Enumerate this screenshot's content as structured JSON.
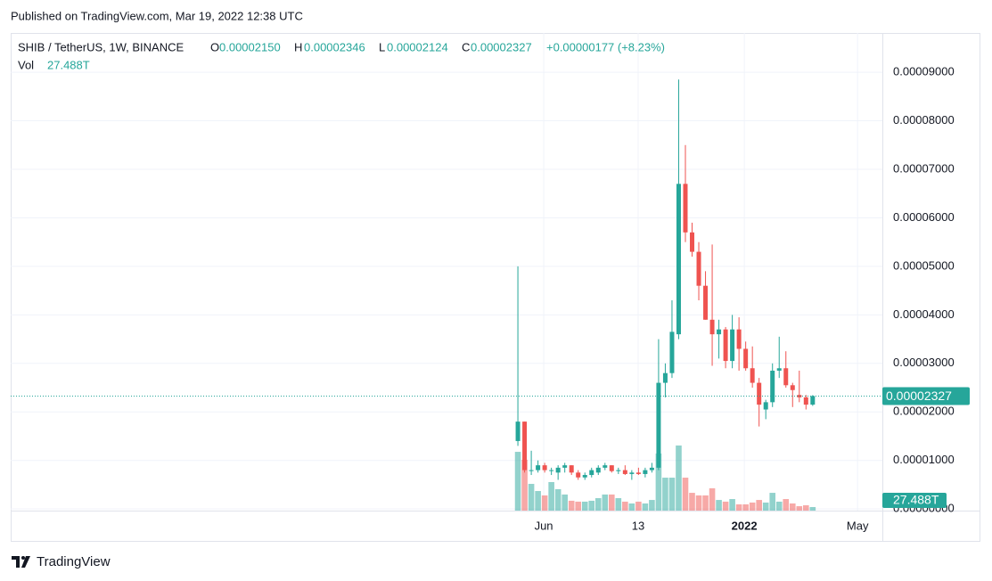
{
  "published": "Published on TradingView.com, Mar 19, 2022 12:38 UTC",
  "brand": "TradingView",
  "chart_data": {
    "type": "candlestick",
    "title": "SHIB / TetherUS, 1W, BINANCE",
    "legend": {
      "o_key": "O",
      "o": "0.00002150",
      "h_key": "H",
      "h": "0.00002346",
      "l_key": "L",
      "l": "0.00002124",
      "c_key": "C",
      "c": "0.00002327",
      "change": "+0.00000177 (+8.23%)",
      "vol_key": "Vol",
      "vol": "27.488T"
    },
    "last_price_label": "0.00002327",
    "last_volume_label": "27.488T",
    "up_color": "#26a69a",
    "down_color": "#ef5350",
    "grid": true,
    "categories": [
      null,
      null,
      null,
      null,
      null,
      null,
      null,
      null,
      null,
      null,
      null,
      null,
      null,
      null,
      null,
      null,
      null,
      null,
      null,
      null,
      null,
      null,
      null,
      null,
      null,
      null,
      null,
      null,
      null,
      null,
      null,
      null,
      null,
      null,
      null,
      null,
      null,
      null,
      null,
      null,
      null,
      null,
      null,
      null,
      null
    ],
    "open": [
      1.4e-05,
      1.8e-05,
      8e-06,
      8e-06,
      9e-06,
      8e-06,
      7.5e-06,
      8.5e-06,
      9e-06,
      7.5e-06,
      6.5e-06,
      7e-06,
      7.5e-06,
      8.5e-06,
      9e-06,
      7.8e-06,
      8e-06,
      7.2e-06,
      7.5e-06,
      7.2e-06,
      8e-06,
      8.5e-06,
      2.6e-05,
      2.8e-05,
      3.6e-05,
      6.7e-05,
      5.7e-05,
      5.3e-05,
      4.6e-05,
      3.9e-05,
      3.6e-05,
      3.7e-05,
      3.05e-05,
      3.7e-05,
      3.3e-05,
      2.9e-05,
      2.6e-05,
      2.05e-05,
      2.2e-05,
      2.85e-05,
      2.9e-05,
      2.55e-05,
      2.35e-05,
      2.3e-05,
      2.15e-05
    ],
    "high": [
      5e-05,
      1.8e-05,
      1.2e-05,
      1e-05,
      9.5e-06,
      8.5e-06,
      9e-06,
      9.5e-06,
      9e-06,
      8e-06,
      7.5e-06,
      8.5e-06,
      9e-06,
      9.5e-06,
      9e-06,
      8.5e-06,
      9e-06,
      8e-06,
      8.5e-06,
      8.5e-06,
      9.5e-06,
      3.5e-05,
      3e-05,
      4.3e-05,
      8.85e-05,
      7.5e-05,
      5.9e-05,
      5.5e-05,
      4.9e-05,
      5.45e-05,
      3.9e-05,
      3.75e-05,
      4e-05,
      3.95e-05,
      3.45e-05,
      3.35e-05,
      2.7e-05,
      2.25e-05,
      3e-05,
      3.55e-05,
      3.25e-05,
      2.6e-05,
      2.85e-05,
      2.35e-05,
      2.346e-05
    ],
    "low": [
      1.3e-05,
      7.5e-06,
      7e-06,
      7.5e-06,
      7.5e-06,
      7e-06,
      6e-06,
      7.5e-06,
      7e-06,
      6e-06,
      6e-06,
      6.5e-06,
      7e-06,
      8e-06,
      7.5e-06,
      7.2e-06,
      7e-06,
      6e-06,
      7e-06,
      6.5e-06,
      7.5e-06,
      8e-06,
      2.3e-05,
      2.7e-05,
      3.5e-05,
      5.5e-05,
      5.2e-05,
      4.3e-05,
      3.9e-05,
      2.95e-05,
      3.1e-05,
      2.9e-05,
      2.9e-05,
      2.85e-05,
      2.85e-05,
      2.5e-05,
      1.7e-05,
      1.85e-05,
      2.1e-05,
      2.7e-05,
      2.5e-05,
      2.1e-05,
      2.2e-05,
      2.05e-05,
      2.124e-05
    ],
    "close": [
      1.8e-05,
      8e-06,
      8e-06,
      9e-06,
      8e-06,
      8e-06,
      8.5e-06,
      9e-06,
      7.5e-06,
      6.5e-06,
      7e-06,
      8e-06,
      8.5e-06,
      9e-06,
      7.8e-06,
      8e-06,
      7.2e-06,
      7.5e-06,
      7.2e-06,
      8e-06,
      8.5e-06,
      2.6e-05,
      2.8e-05,
      3.65e-05,
      6.7e-05,
      5.7e-05,
      5.3e-05,
      4.6e-05,
      3.9e-05,
      3.6e-05,
      3.7e-05,
      3.05e-05,
      3.7e-05,
      3.3e-05,
      2.9e-05,
      2.6e-05,
      2.15e-05,
      2.2e-05,
      2.85e-05,
      2.9e-05,
      2.55e-05,
      2.45e-05,
      2.3e-05,
      2.15e-05,
      2.327e-05
    ],
    "volume": [
      453,
      392,
      206,
      151,
      117,
      220,
      165,
      124,
      76,
      69,
      69,
      76,
      96,
      124,
      124,
      96,
      69,
      55,
      69,
      55,
      82,
      440,
      254,
      254,
      502,
      254,
      137,
      117,
      117,
      172,
      82,
      69,
      89,
      48,
      48,
      62,
      82,
      62,
      137,
      69,
      89,
      55,
      34,
      41,
      27.488
    ],
    "xlim": [
      -75.7,
      54.4
    ],
    "xticks": [
      {
        "value": 3.86,
        "label": "Jun"
      },
      {
        "value": 17.95,
        "label": "13"
      },
      {
        "value": 33.8,
        "label": "2022"
      },
      {
        "value": 50.7,
        "label": "May"
      }
    ],
    "ylim": [
      -3.4e-07,
      9.81e-05
    ],
    "yticks": [
      {
        "value": 0,
        "label": "0.00000000"
      },
      {
        "value": 1e-05,
        "label": "0.00001000"
      },
      {
        "value": 2e-05,
        "label": "0.00002000"
      },
      {
        "value": 3e-05,
        "label": "0.00003000"
      },
      {
        "value": 4e-05,
        "label": "0.00004000"
      },
      {
        "value": 5e-05,
        "label": "0.00005000"
      },
      {
        "value": 6e-05,
        "label": "0.00006000"
      },
      {
        "value": 7e-05,
        "label": "0.00007000"
      },
      {
        "value": 8e-05,
        "label": "0.00008000"
      },
      {
        "value": 9e-05,
        "label": "0.00009000"
      }
    ]
  }
}
